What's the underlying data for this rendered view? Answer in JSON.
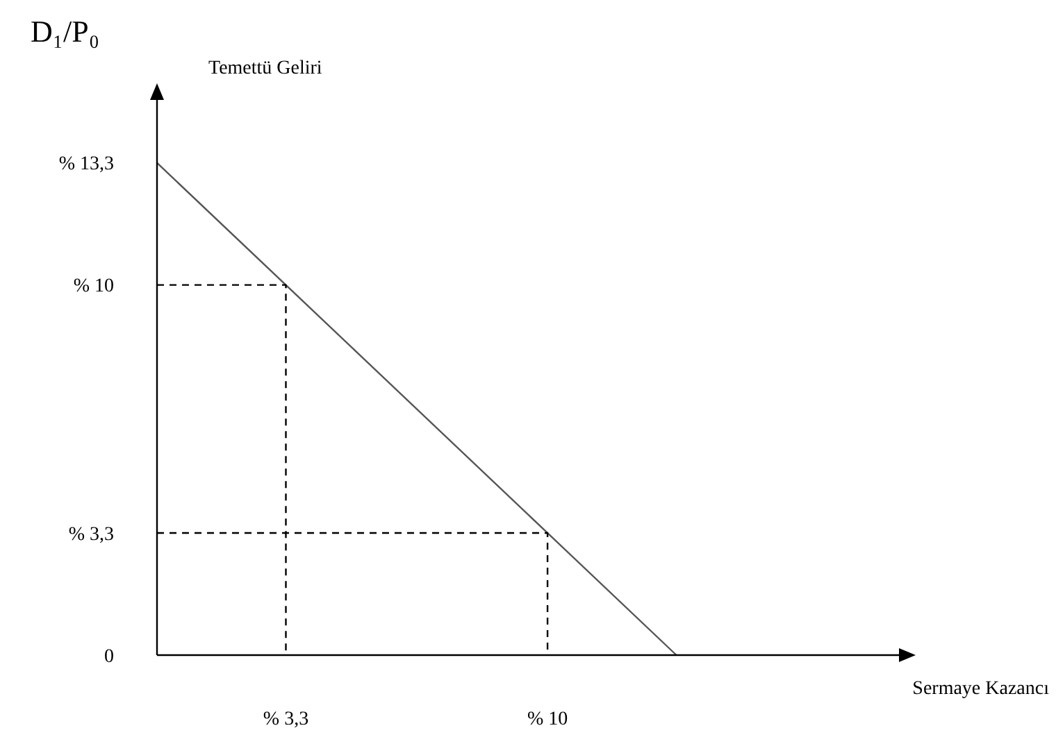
{
  "chart_data": {
    "type": "line",
    "title": "D₁/P₀",
    "xlabel": "Sermaye Kazancı",
    "ylabel": "Temettü Geliri",
    "xlim": [
      0,
      19
    ],
    "ylim": [
      0,
      15
    ],
    "xticks": [
      {
        "value": 3.3,
        "label": "% 3,3"
      },
      {
        "value": 10,
        "label": "% 10"
      }
    ],
    "yticks": [
      0,
      {
        "value": 3.3,
        "label": "% 3,3"
      },
      {
        "value": 10,
        "label": "% 10"
      },
      {
        "value": 13.3,
        "label": "% 13,3"
      }
    ],
    "grid": false,
    "series": [
      {
        "color": "#555555",
        "x": [
          0,
          13.3
        ],
        "values": [
          13.3,
          0
        ],
        "line_style": "solid"
      },
      {
        "color": "#000000",
        "x": [
          0,
          3.3,
          3.3
        ],
        "values": [
          10,
          10,
          0
        ],
        "line_style": "dashed"
      },
      {
        "color": "#000000",
        "x": [
          0,
          10,
          10
        ],
        "values": [
          3.3,
          3.3,
          0
        ],
        "line_style": "dashed"
      }
    ]
  }
}
